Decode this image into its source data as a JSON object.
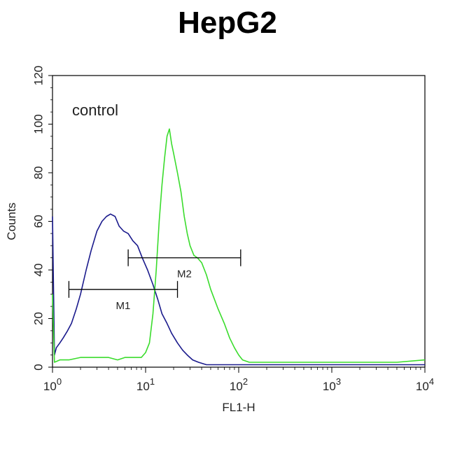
{
  "chart_data": {
    "type": "line",
    "title": "HepG2",
    "xlabel": "FL1-H",
    "ylabel": "Counts",
    "x_scale": "log",
    "xlim": [
      1,
      10000
    ],
    "ylim": [
      0,
      120
    ],
    "y_ticks": [
      "0",
      "20",
      "40",
      "60",
      "80",
      "100",
      "120"
    ],
    "x_ticks": [
      {
        "base": "10",
        "exp": "0",
        "value": 1
      },
      {
        "base": "10",
        "exp": "1",
        "value": 10
      },
      {
        "base": "10",
        "exp": "2",
        "value": 100
      },
      {
        "base": "10",
        "exp": "3",
        "value": 1000
      },
      {
        "base": "10",
        "exp": "4",
        "value": 10000
      }
    ],
    "grid": false,
    "annotation": "control",
    "series": [
      {
        "color": "#1a1a8c",
        "x": [
          1,
          1.05,
          1.1,
          1.2,
          1.3,
          1.45,
          1.6,
          1.8,
          2.0,
          2.3,
          2.6,
          3.0,
          3.4,
          3.8,
          4.2,
          4.7,
          5.2,
          5.8,
          6.5,
          7.3,
          8.2,
          9.2,
          10.5,
          12,
          13.5,
          15,
          17,
          19,
          22,
          25,
          28,
          32,
          37,
          45,
          60,
          80,
          120,
          200,
          400,
          1000,
          3000,
          10000
        ],
        "y": [
          62,
          5,
          8,
          10,
          12,
          15,
          18,
          24,
          30,
          40,
          48,
          56,
          60,
          62,
          63,
          62,
          58,
          56,
          55,
          52,
          50,
          45,
          40,
          34,
          28,
          22,
          18,
          14,
          10,
          7,
          5,
          3,
          2,
          1,
          1,
          1,
          1,
          1,
          1,
          1,
          1,
          1
        ]
      },
      {
        "color": "#3adc2c",
        "x": [
          1,
          1.05,
          1.2,
          1.5,
          2,
          3,
          4,
          5,
          6,
          7,
          8,
          9,
          10,
          11,
          12,
          13,
          14,
          15,
          16,
          17,
          18,
          19,
          20,
          22,
          24,
          26,
          28,
          30,
          33,
          36,
          40,
          45,
          50,
          60,
          70,
          80,
          90,
          100,
          110,
          130,
          160,
          200,
          500,
          1000,
          5000,
          10000
        ],
        "y": [
          30,
          2,
          3,
          3,
          4,
          4,
          4,
          3,
          4,
          4,
          4,
          4,
          6,
          10,
          22,
          40,
          60,
          75,
          86,
          95,
          98,
          92,
          88,
          80,
          72,
          62,
          55,
          50,
          46,
          45,
          43,
          38,
          32,
          24,
          18,
          12,
          8,
          5,
          3,
          2,
          2,
          2,
          2,
          2,
          2,
          3
        ]
      }
    ],
    "markers": [
      {
        "label": "M1",
        "x_start": 1.5,
        "x_end": 22,
        "y": 32
      },
      {
        "label": "M2",
        "x_start": 6.5,
        "x_end": 105,
        "y": 45
      }
    ]
  }
}
